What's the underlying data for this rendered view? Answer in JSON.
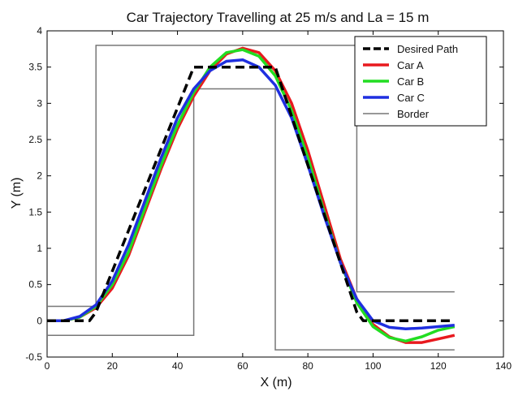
{
  "chart_data": {
    "type": "line",
    "title": "Car Trajectory Travelling at 25 m/s and La = 15 m",
    "xlabel": "X (m)",
    "ylabel": "Y (m)",
    "xlim": [
      0,
      140
    ],
    "ylim": [
      -0.5,
      4
    ],
    "xticks": [
      0,
      20,
      40,
      60,
      80,
      100,
      120,
      140
    ],
    "yticks": [
      -0.5,
      0,
      0.5,
      1,
      1.5,
      2,
      2.5,
      3,
      3.5,
      4
    ],
    "grid": false,
    "legend_position": "top-right",
    "series": [
      {
        "name": "Desired Path",
        "color": "#000000",
        "style": "dashed",
        "x": [
          0,
          13,
          15,
          45,
          70,
          95,
          97,
          125
        ],
        "y": [
          0,
          0,
          0.12,
          3.5,
          3.5,
          0.12,
          0,
          0
        ]
      },
      {
        "name": "Car A",
        "color": "#e8191e",
        "style": "solid",
        "x": [
          0,
          5,
          10,
          15,
          20,
          25,
          30,
          35,
          40,
          45,
          50,
          55,
          60,
          65,
          70,
          75,
          80,
          85,
          90,
          95,
          100,
          105,
          110,
          115,
          120,
          125
        ],
        "y": [
          0,
          0,
          0.05,
          0.18,
          0.45,
          0.9,
          1.5,
          2.1,
          2.65,
          3.1,
          3.45,
          3.68,
          3.76,
          3.7,
          3.45,
          3.0,
          2.35,
          1.6,
          0.85,
          0.3,
          -0.05,
          -0.22,
          -0.3,
          -0.3,
          -0.25,
          -0.2
        ]
      },
      {
        "name": "Car B",
        "color": "#22dd22",
        "style": "solid",
        "x": [
          0,
          5,
          10,
          15,
          20,
          25,
          30,
          35,
          40,
          45,
          50,
          55,
          60,
          65,
          70,
          75,
          80,
          85,
          90,
          95,
          100,
          105,
          110,
          115,
          120,
          125
        ],
        "y": [
          0,
          0,
          0.05,
          0.2,
          0.5,
          0.95,
          1.55,
          2.15,
          2.7,
          3.15,
          3.5,
          3.7,
          3.74,
          3.65,
          3.38,
          2.9,
          2.25,
          1.5,
          0.8,
          0.25,
          -0.08,
          -0.23,
          -0.28,
          -0.22,
          -0.13,
          -0.08
        ]
      },
      {
        "name": "Car C",
        "color": "#1f2fe0",
        "style": "solid",
        "x": [
          0,
          5,
          10,
          15,
          20,
          25,
          30,
          35,
          40,
          45,
          50,
          55,
          60,
          65,
          70,
          75,
          80,
          85,
          90,
          95,
          100,
          105,
          110,
          115,
          120,
          125
        ],
        "y": [
          0,
          0,
          0.06,
          0.22,
          0.55,
          1.05,
          1.65,
          2.25,
          2.8,
          3.2,
          3.45,
          3.58,
          3.6,
          3.5,
          3.25,
          2.8,
          2.15,
          1.45,
          0.8,
          0.3,
          0.0,
          -0.09,
          -0.11,
          -0.1,
          -0.08,
          -0.06
        ]
      },
      {
        "name": "Border",
        "color": "#777777",
        "style": "solid",
        "segments": [
          {
            "x": [
              0,
              15,
              15,
              95,
              95,
              125
            ],
            "y": [
              0.2,
              0.2,
              3.8,
              3.8,
              0.4,
              0.4
            ]
          },
          {
            "x": [
              0,
              45,
              45,
              70,
              70,
              125
            ],
            "y": [
              -0.2,
              -0.2,
              3.2,
              3.2,
              -0.4,
              -0.4
            ]
          }
        ]
      }
    ]
  }
}
